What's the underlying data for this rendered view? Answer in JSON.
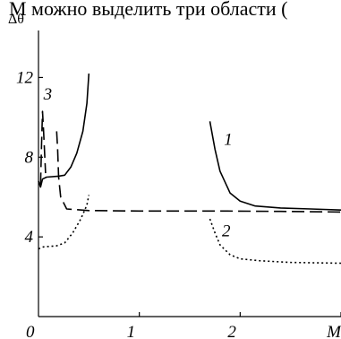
{
  "caption_text": "M можно выделить три области (",
  "chart_data": {
    "type": "line",
    "title": "",
    "xlabel": "M",
    "ylabel": "Δθ",
    "xlim": [
      0,
      3
    ],
    "ylim": [
      0,
      14
    ],
    "x_ticks": [
      0,
      1,
      2,
      3
    ],
    "x_tick_labels": [
      "0",
      "1",
      "2",
      "M"
    ],
    "y_ticks": [
      4,
      8,
      12
    ],
    "y_tick_labels": [
      "4",
      "8",
      "12"
    ],
    "grid": false,
    "series": [
      {
        "name": "1",
        "style": "solid",
        "segments": [
          [
            [
              0.0,
              6.8
            ],
            [
              0.02,
              6.5
            ],
            [
              0.04,
              6.9
            ],
            [
              0.08,
              7.0
            ],
            [
              0.2,
              7.05
            ],
            [
              0.26,
              7.1
            ],
            [
              0.32,
              7.5
            ],
            [
              0.38,
              8.2
            ],
            [
              0.44,
              9.3
            ],
            [
              0.48,
              10.7
            ],
            [
              0.5,
              12.2
            ]
          ],
          [
            [
              1.7,
              9.8
            ],
            [
              1.75,
              8.4
            ],
            [
              1.8,
              7.3
            ],
            [
              1.9,
              6.2
            ],
            [
              2.0,
              5.8
            ],
            [
              2.15,
              5.55
            ],
            [
              2.4,
              5.45
            ],
            [
              2.7,
              5.4
            ],
            [
              3.0,
              5.35
            ]
          ]
        ]
      },
      {
        "name": "2",
        "style": "dotted",
        "segments": [
          [
            [
              0.0,
              3.4
            ],
            [
              0.05,
              3.5
            ],
            [
              0.18,
              3.55
            ],
            [
              0.26,
              3.7
            ],
            [
              0.34,
              4.2
            ],
            [
              0.42,
              4.9
            ],
            [
              0.48,
              5.6
            ],
            [
              0.5,
              6.1
            ]
          ],
          [
            [
              1.7,
              4.9
            ],
            [
              1.75,
              4.2
            ],
            [
              1.8,
              3.6
            ],
            [
              1.9,
              3.1
            ],
            [
              2.0,
              2.9
            ],
            [
              2.2,
              2.8
            ],
            [
              2.5,
              2.72
            ],
            [
              3.0,
              2.68
            ]
          ]
        ]
      },
      {
        "name": "3",
        "style": "dashed",
        "segments": [
          [
            [
              0.02,
              6.6
            ],
            [
              0.03,
              8.6
            ],
            [
              0.04,
              10.3
            ],
            [
              0.05,
              9.4
            ],
            [
              0.07,
              7.2
            ]
          ],
          [
            [
              0.18,
              9.3
            ],
            [
              0.19,
              8.4
            ],
            [
              0.2,
              7.0
            ],
            [
              0.22,
              6.0
            ],
            [
              0.28,
              5.4
            ],
            [
              0.5,
              5.32
            ],
            [
              1.0,
              5.3
            ],
            [
              1.8,
              5.3
            ],
            [
              2.4,
              5.28
            ],
            [
              3.0,
              5.25
            ]
          ]
        ]
      }
    ],
    "annotations": [
      {
        "text": "1",
        "series": "1"
      },
      {
        "text": "2",
        "series": "2"
      },
      {
        "text": "3",
        "series": "3"
      }
    ]
  }
}
